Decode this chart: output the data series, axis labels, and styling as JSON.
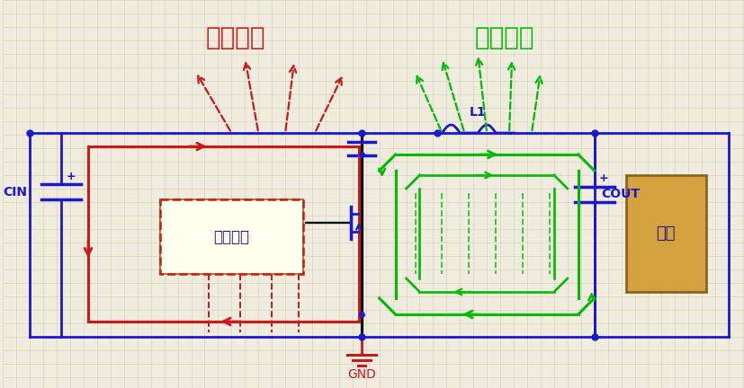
{
  "bg_color": "#f0ede0",
  "grid_color": "#d4cdb8",
  "blue": "#1a1acc",
  "red": "#cc1a1a",
  "green": "#00bb00",
  "dark_blue": "#1a1acc",
  "label_input": "输入环路",
  "label_output": "输出环路",
  "label_cin": "CIN",
  "label_cout": "COUT",
  "label_gnd": "GND",
  "label_l1": "L1",
  "label_ctrl": "控制电路",
  "label_load": "负载",
  "title_fontsize": 20,
  "label_fontsize": 12,
  "small_fontsize": 10,
  "note_fontsize": 9,
  "lw_main": 2.0,
  "lw_loop": 2.2,
  "lw_dashed": 1.6
}
